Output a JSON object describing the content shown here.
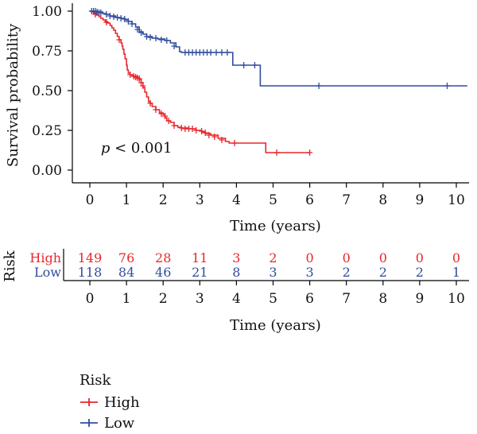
{
  "chart_data": {
    "type": "line",
    "subtype": "kaplan-meier",
    "title": "",
    "ylabel": "Survival probability",
    "xlabel": "Time (years)",
    "xlim": [
      0,
      10.5
    ],
    "ylim": [
      0,
      1.0
    ],
    "x_ticks": [
      0,
      1,
      2,
      3,
      4,
      5,
      6,
      7,
      8,
      9,
      10
    ],
    "y_ticks": [
      "0.00",
      "0.25",
      "0.50",
      "0.75",
      "1.00"
    ],
    "annotation": {
      "p_symbol": "p",
      "p_rest": " < 0.001",
      "x": 0.3,
      "y": 0.17
    },
    "series": [
      {
        "name": "High",
        "color": "#e8262c",
        "steps": [
          [
            0,
            1.0
          ],
          [
            0.05,
            0.995
          ],
          [
            0.12,
            0.985
          ],
          [
            0.18,
            0.975
          ],
          [
            0.25,
            0.965
          ],
          [
            0.3,
            0.955
          ],
          [
            0.36,
            0.945
          ],
          [
            0.42,
            0.935
          ],
          [
            0.48,
            0.925
          ],
          [
            0.55,
            0.91
          ],
          [
            0.6,
            0.895
          ],
          [
            0.65,
            0.88
          ],
          [
            0.7,
            0.86
          ],
          [
            0.75,
            0.84
          ],
          [
            0.8,
            0.82
          ],
          [
            0.85,
            0.8
          ],
          [
            0.88,
            0.78
          ],
          [
            0.9,
            0.76
          ],
          [
            0.93,
            0.73
          ],
          [
            0.96,
            0.7
          ],
          [
            1.0,
            0.66
          ],
          [
            1.02,
            0.63
          ],
          [
            1.05,
            0.61
          ],
          [
            1.1,
            0.6
          ],
          [
            1.15,
            0.595
          ],
          [
            1.2,
            0.59
          ],
          [
            1.3,
            0.58
          ],
          [
            1.35,
            0.57
          ],
          [
            1.4,
            0.55
          ],
          [
            1.45,
            0.52
          ],
          [
            1.5,
            0.49
          ],
          [
            1.55,
            0.46
          ],
          [
            1.6,
            0.43
          ],
          [
            1.65,
            0.42
          ],
          [
            1.7,
            0.4
          ],
          [
            1.8,
            0.38
          ],
          [
            1.9,
            0.36
          ],
          [
            2.0,
            0.35
          ],
          [
            2.05,
            0.33
          ],
          [
            2.1,
            0.31
          ],
          [
            2.2,
            0.3
          ],
          [
            2.3,
            0.28
          ],
          [
            2.4,
            0.27
          ],
          [
            2.5,
            0.265
          ],
          [
            2.7,
            0.26
          ],
          [
            2.9,
            0.25
          ],
          [
            3.05,
            0.24
          ],
          [
            3.15,
            0.23
          ],
          [
            3.3,
            0.22
          ],
          [
            3.5,
            0.2
          ],
          [
            3.7,
            0.18
          ],
          [
            3.8,
            0.17
          ],
          [
            4.8,
            0.11
          ],
          [
            6.0,
            0.11
          ]
        ],
        "censors": [
          [
            0.15,
            0.98
          ],
          [
            0.45,
            0.93
          ],
          [
            0.8,
            0.82
          ],
          [
            1.1,
            0.6
          ],
          [
            1.2,
            0.59
          ],
          [
            1.25,
            0.585
          ],
          [
            1.3,
            0.58
          ],
          [
            1.35,
            0.575
          ],
          [
            1.4,
            0.55
          ],
          [
            1.45,
            0.53
          ],
          [
            1.65,
            0.42
          ],
          [
            1.8,
            0.38
          ],
          [
            1.95,
            0.355
          ],
          [
            2.05,
            0.34
          ],
          [
            2.15,
            0.31
          ],
          [
            2.3,
            0.28
          ],
          [
            2.5,
            0.265
          ],
          [
            2.6,
            0.26
          ],
          [
            2.7,
            0.26
          ],
          [
            2.8,
            0.26
          ],
          [
            2.9,
            0.25
          ],
          [
            3.05,
            0.245
          ],
          [
            3.15,
            0.235
          ],
          [
            3.25,
            0.22
          ],
          [
            3.4,
            0.21
          ],
          [
            3.6,
            0.19
          ],
          [
            3.95,
            0.17
          ],
          [
            5.1,
            0.11
          ],
          [
            6.0,
            0.11
          ]
        ]
      },
      {
        "name": "Low",
        "color": "#2f4d9e",
        "steps": [
          [
            0,
            1.0
          ],
          [
            0.2,
            0.995
          ],
          [
            0.35,
            0.985
          ],
          [
            0.45,
            0.98
          ],
          [
            0.55,
            0.97
          ],
          [
            0.7,
            0.96
          ],
          [
            0.85,
            0.955
          ],
          [
            0.95,
            0.945
          ],
          [
            1.05,
            0.935
          ],
          [
            1.15,
            0.92
          ],
          [
            1.25,
            0.9
          ],
          [
            1.35,
            0.87
          ],
          [
            1.45,
            0.855
          ],
          [
            1.55,
            0.84
          ],
          [
            1.7,
            0.83
          ],
          [
            1.85,
            0.825
          ],
          [
            2.05,
            0.815
          ],
          [
            2.2,
            0.8
          ],
          [
            2.35,
            0.775
          ],
          [
            2.45,
            0.745
          ],
          [
            2.5,
            0.74
          ],
          [
            3.85,
            0.74
          ],
          [
            3.9,
            0.66
          ],
          [
            4.6,
            0.66
          ],
          [
            4.65,
            0.53
          ],
          [
            10.3,
            0.53
          ]
        ],
        "censors": [
          [
            0.05,
            1.0
          ],
          [
            0.1,
            1.0
          ],
          [
            0.15,
            1.0
          ],
          [
            0.2,
            0.995
          ],
          [
            0.25,
            0.99
          ],
          [
            0.3,
            0.99
          ],
          [
            0.45,
            0.98
          ],
          [
            0.55,
            0.97
          ],
          [
            0.65,
            0.965
          ],
          [
            0.75,
            0.96
          ],
          [
            0.85,
            0.955
          ],
          [
            0.95,
            0.95
          ],
          [
            1.05,
            0.935
          ],
          [
            1.15,
            0.92
          ],
          [
            1.3,
            0.885
          ],
          [
            1.4,
            0.865
          ],
          [
            1.55,
            0.84
          ],
          [
            1.65,
            0.835
          ],
          [
            1.8,
            0.83
          ],
          [
            1.95,
            0.82
          ],
          [
            2.1,
            0.815
          ],
          [
            2.3,
            0.78
          ],
          [
            2.6,
            0.74
          ],
          [
            2.7,
            0.74
          ],
          [
            2.8,
            0.74
          ],
          [
            2.9,
            0.74
          ],
          [
            3.0,
            0.74
          ],
          [
            3.1,
            0.74
          ],
          [
            3.2,
            0.74
          ],
          [
            3.3,
            0.74
          ],
          [
            3.45,
            0.74
          ],
          [
            3.6,
            0.74
          ],
          [
            3.75,
            0.74
          ],
          [
            4.2,
            0.66
          ],
          [
            4.5,
            0.66
          ],
          [
            6.25,
            0.53
          ],
          [
            9.75,
            0.53
          ]
        ]
      }
    ],
    "risk_table": {
      "title": "Risk",
      "xlabel": "Time (years)",
      "rows": [
        {
          "name": "High",
          "color": "#e8262c",
          "values": [
            149,
            76,
            28,
            11,
            3,
            2,
            0,
            0,
            0,
            0,
            0
          ]
        },
        {
          "name": "Low",
          "color": "#2f4d9e",
          "values": [
            118,
            84,
            46,
            21,
            8,
            3,
            3,
            2,
            2,
            2,
            1
          ]
        }
      ]
    },
    "legend": {
      "title": "Risk",
      "position": "bottom-left",
      "items": [
        {
          "label": "High",
          "color": "#e8262c"
        },
        {
          "label": "Low",
          "color": "#2f4d9e"
        }
      ]
    }
  }
}
